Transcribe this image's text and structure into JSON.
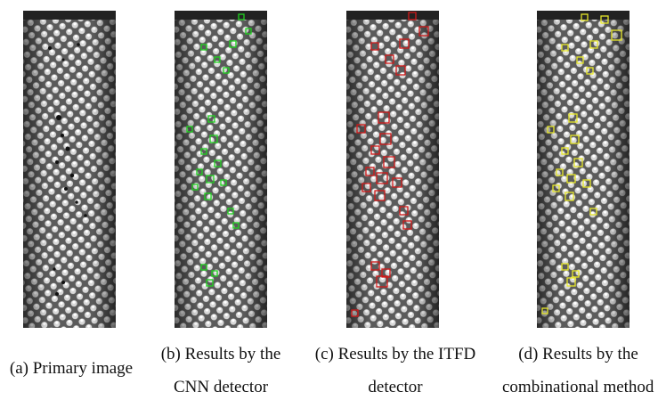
{
  "figure": {
    "panels": [
      {
        "id": "a",
        "caption_lines": [
          "(a) Primary image"
        ],
        "box_color": null
      },
      {
        "id": "b",
        "caption_lines": [
          "(b) Results by the",
          "CNN detector"
        ],
        "box_color": "#1fd11f"
      },
      {
        "id": "c",
        "caption_lines": [
          "(c) Results by the ITFD",
          "detector"
        ],
        "box_color": "#d01919"
      },
      {
        "id": "d",
        "caption_lines": [
          "(d) Results by the",
          "combinational method"
        ],
        "box_color": "#e6e62a"
      }
    ]
  }
}
